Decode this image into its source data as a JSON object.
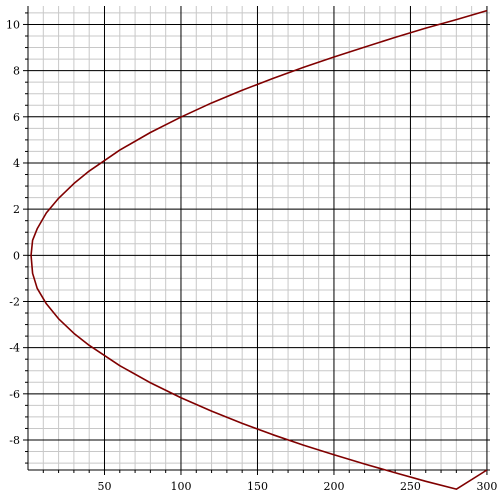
{
  "chart_data": {
    "type": "line",
    "title": "",
    "xlabel": "",
    "ylabel": "",
    "xlim": [
      0,
      302
    ],
    "ylim": [
      -9.3,
      10.8
    ],
    "x_ticks": [
      50,
      100,
      150,
      200,
      250,
      300
    ],
    "y_ticks": [
      -8,
      -6,
      -4,
      -2,
      0,
      2,
      4,
      6,
      8,
      10
    ],
    "grid": true,
    "series": [
      {
        "color": "#800000",
        "x": [
          300,
          280,
          260,
          240,
          220,
          200,
          180,
          160,
          140,
          120,
          100,
          80,
          60,
          40,
          30,
          20,
          12,
          6,
          3,
          2,
          3,
          6,
          12,
          20,
          30,
          40,
          60,
          80,
          100,
          120,
          140,
          160,
          180,
          200,
          220,
          240,
          260,
          280,
          300
        ],
        "y": [
          10.6,
          10.21,
          9.84,
          9.44,
          9.02,
          8.59,
          8.14,
          7.66,
          7.15,
          6.6,
          5.99,
          5.32,
          4.56,
          3.65,
          3.11,
          2.47,
          1.84,
          1.15,
          0.65,
          0,
          -0.78,
          -1.43,
          -2.1,
          -2.75,
          -3.38,
          -3.9,
          -4.78,
          -5.52,
          -6.17,
          -6.75,
          -7.28,
          -7.77,
          -8.22,
          -8.64,
          -9.04,
          -9.42,
          -9.79,
          -10.13,
          -9.3
        ]
      }
    ]
  }
}
